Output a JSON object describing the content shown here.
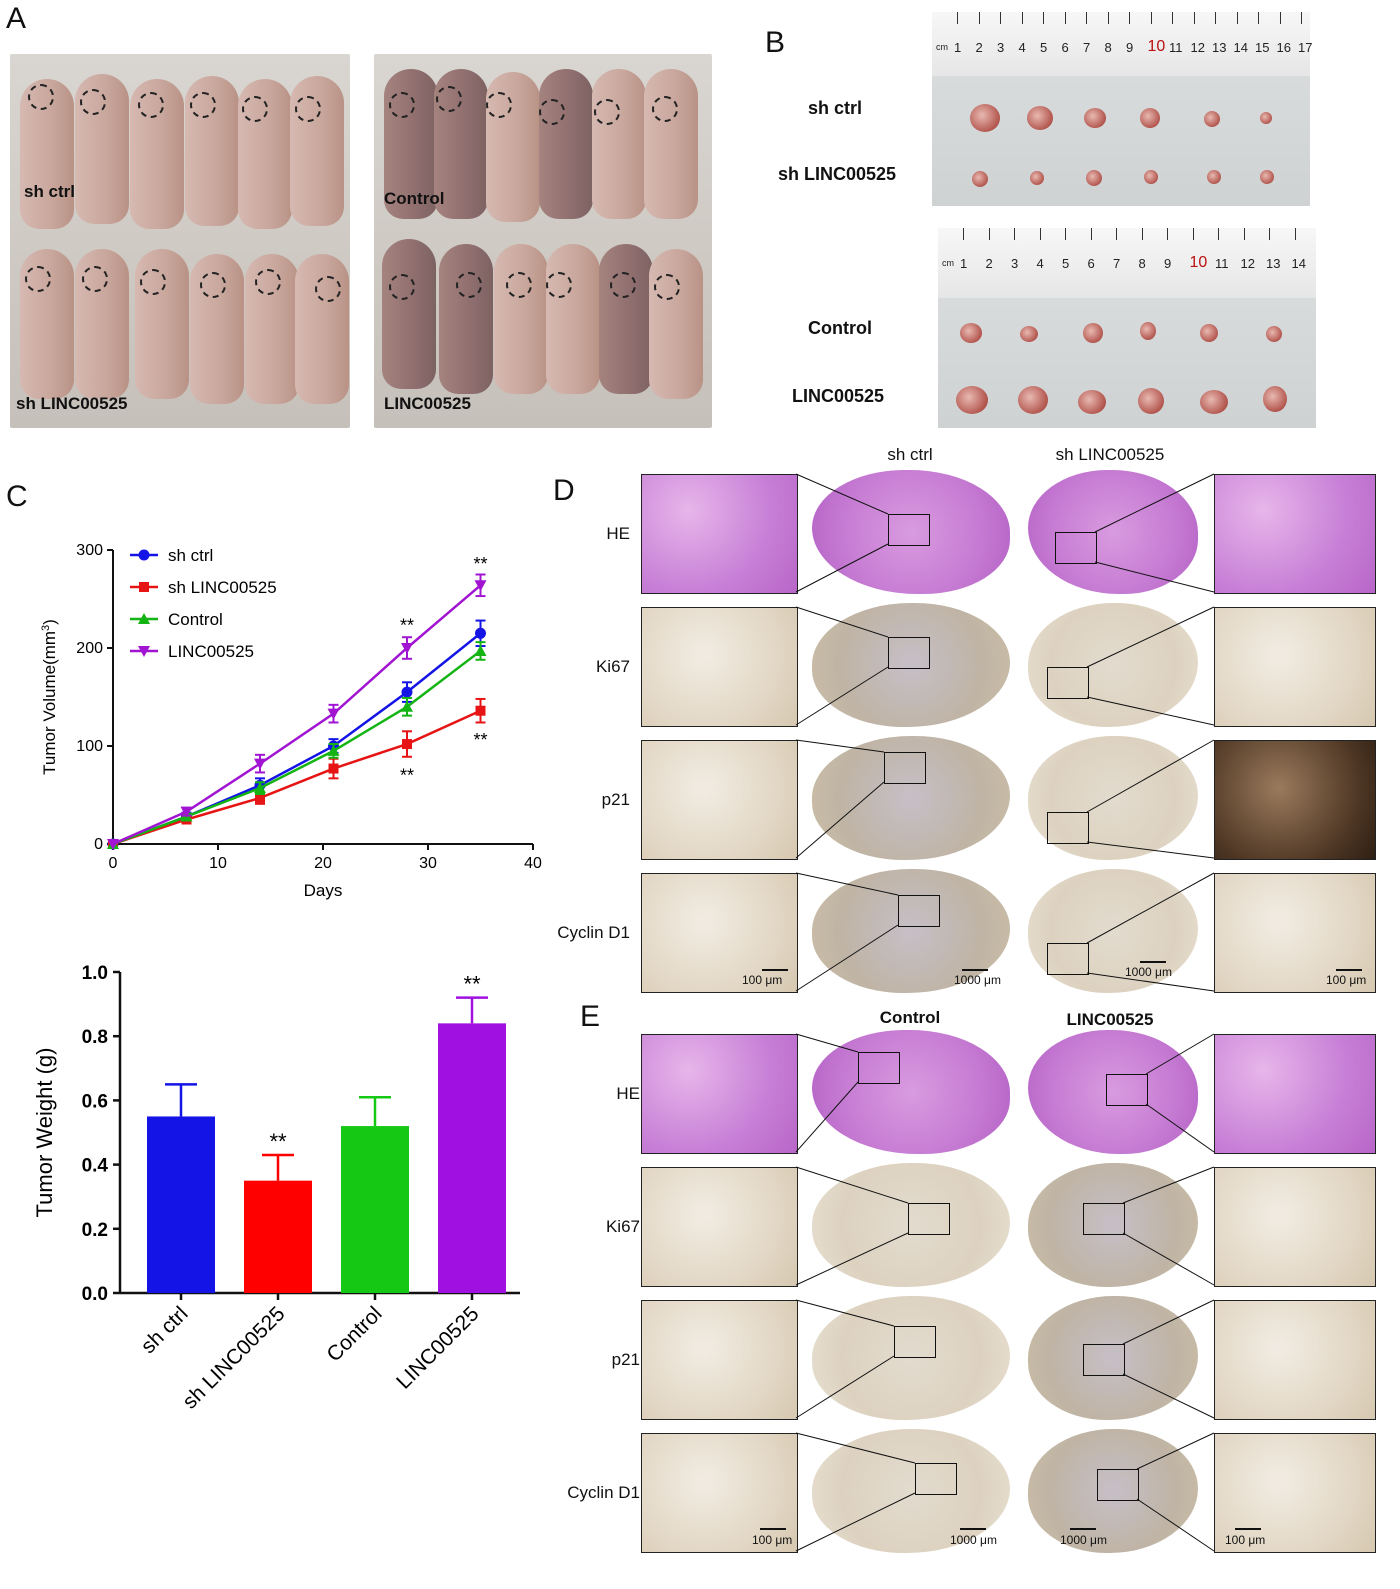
{
  "panels": {
    "A": {
      "letter": "A",
      "left_labels": [
        "sh ctrl",
        "sh LINC00525"
      ],
      "right_labels": [
        "Control",
        "LINC00525"
      ]
    },
    "B": {
      "letter": "B",
      "top_labels": [
        "sh ctrl",
        "sh LINC00525"
      ],
      "bottom_labels": [
        "Control",
        "LINC00525"
      ],
      "ruler_unit": "cm",
      "ruler_top_numbers": [
        "1",
        "2",
        "3",
        "4",
        "5",
        "6",
        "7",
        "8",
        "9",
        "10",
        "11",
        "12",
        "13",
        "14",
        "15",
        "16",
        "17"
      ],
      "ruler_bottom_numbers": [
        "1",
        "2",
        "3",
        "4",
        "5",
        "6",
        "7",
        "8",
        "9",
        "10",
        "11",
        "12",
        "13",
        "14"
      ]
    },
    "C": {
      "letter": "C"
    },
    "D": {
      "letter": "D",
      "col_labels": [
        "sh ctrl",
        "sh LINC00525"
      ],
      "row_labels": [
        "HE",
        "Ki67",
        "p21",
        "Cyclin D1"
      ],
      "scale_labels": [
        "100 μm",
        "1000 μm",
        "1000 μm",
        "100 μm"
      ]
    },
    "E": {
      "letter": "E",
      "col_labels": [
        "Control",
        "LINC00525"
      ],
      "row_labels": [
        "HE",
        "Ki67",
        "p21",
        "Cyclin D1"
      ],
      "scale_labels": [
        "100 μm",
        "1000 μm",
        "1000 μm",
        "100 μm"
      ]
    }
  },
  "chart_data": [
    {
      "type": "line",
      "xlabel": "Days",
      "ylabel": "Tumor  Volume(mm3)",
      "xlim": [
        0,
        40
      ],
      "ylim": [
        0,
        300
      ],
      "xticks": [
        0,
        10,
        20,
        30,
        40
      ],
      "yticks": [
        0,
        100,
        200,
        300
      ],
      "x": [
        0,
        7,
        14,
        21,
        28,
        35
      ],
      "legend_position": "top-left",
      "series": [
        {
          "name": "sh ctrl",
          "color": "#1414e6",
          "marker": "circle",
          "values": [
            0,
            28,
            60,
            100,
            155,
            215
          ],
          "errors": [
            0,
            4,
            7,
            7,
            10,
            13
          ]
        },
        {
          "name": "sh LINC00525",
          "color": "#e61414",
          "marker": "square",
          "values": [
            0,
            25,
            47,
            77,
            102,
            136
          ],
          "errors": [
            0,
            3,
            6,
            10,
            13,
            12
          ]
        },
        {
          "name": "Control",
          "color": "#14b414",
          "marker": "triangle-up",
          "values": [
            0,
            28,
            57,
            95,
            140,
            197
          ],
          "errors": [
            0,
            3,
            6,
            7,
            9,
            9
          ]
        },
        {
          "name": "LINC00525",
          "color": "#a014d2",
          "marker": "triangle-down",
          "values": [
            0,
            33,
            82,
            133,
            200,
            264
          ],
          "errors": [
            0,
            4,
            9,
            9,
            11,
            11
          ]
        }
      ],
      "annotations": [
        {
          "x": 28,
          "y": 225,
          "text": "**"
        },
        {
          "x": 35,
          "y": 288,
          "text": "**"
        },
        {
          "x": 28,
          "y": 72,
          "text": "**"
        },
        {
          "x": 35,
          "y": 108,
          "text": "**"
        }
      ]
    },
    {
      "type": "bar",
      "ylabel": "Tumor Weight (g)",
      "ylim": [
        0,
        1.0
      ],
      "yticks": [
        "0.0",
        "0.2",
        "0.4",
        "0.6",
        "0.8",
        "1.0"
      ],
      "categories": [
        "sh ctrl",
        "sh LINC00525",
        "Control",
        "LINC00525"
      ],
      "values": [
        0.55,
        0.35,
        0.52,
        0.84
      ],
      "errors": [
        0.1,
        0.08,
        0.09,
        0.08
      ],
      "colors": [
        "#1414e6",
        "#ff0000",
        "#14c814",
        "#a010e0"
      ],
      "annotations": [
        {
          "category": "sh LINC00525",
          "text": "**"
        },
        {
          "category": "LINC00525",
          "text": "**"
        }
      ]
    }
  ]
}
